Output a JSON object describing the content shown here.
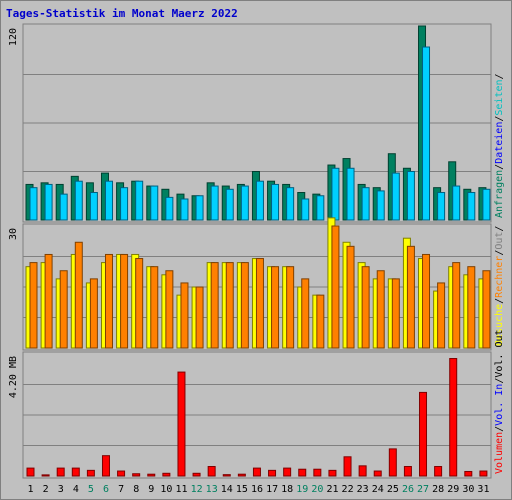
{
  "title": "Tages-Statistik im Monat Maerz 2022",
  "colors": {
    "background": "#c0c0c0",
    "grid": "#808080",
    "title": "#0000cc",
    "anfragen": "#008060",
    "dateien": "#00d0ff",
    "seiten": "#00c0c0",
    "besuche": "#ffff00",
    "rechner": "#ff8000",
    "volumen": "#ff0000",
    "weekend": "#008060",
    "weekday": "#000000"
  },
  "chart_data": {
    "type": "bar",
    "categories": [
      "1",
      "2",
      "3",
      "4",
      "5",
      "6",
      "7",
      "8",
      "9",
      "10",
      "11",
      "12",
      "13",
      "14",
      "15",
      "16",
      "17",
      "18",
      "19",
      "20",
      "21",
      "22",
      "23",
      "24",
      "25",
      "26",
      "27",
      "28",
      "29",
      "30",
      "31"
    ],
    "weekend_days": [
      "5",
      "6",
      "12",
      "13",
      "19",
      "20",
      "26",
      "27"
    ],
    "panels": [
      {
        "id": "top",
        "scale_label": "120",
        "ymax": 120,
        "right_labels": [
          {
            "text": "Anfragen",
            "color": "#008060"
          },
          {
            "text": "/",
            "color": "#000000"
          },
          {
            "text": "Dateien",
            "color": "#0000ff"
          },
          {
            "text": "/",
            "color": "#000000"
          },
          {
            "text": "Seiten",
            "color": "#00c0c0"
          },
          {
            "text": "/",
            "color": "#000000"
          }
        ],
        "series": [
          {
            "name": "Anfragen",
            "color": "#008060",
            "values": [
              22,
              23,
              22,
              27,
              23,
              29,
              23,
              24,
              21,
              19,
              16,
              15,
              23,
              21,
              22,
              30,
              24,
              22,
              17,
              16,
              34,
              38,
              22,
              20,
              41,
              32,
              120,
              20,
              36,
              19,
              20
            ]
          },
          {
            "name": "Dateien",
            "color": "#00d0ff",
            "values": [
              20,
              22,
              16,
              24,
              17,
              24,
              20,
              24,
              21,
              14,
              13,
              15,
              21,
              19,
              21,
              24,
              22,
              20,
              13,
              15,
              32,
              32,
              20,
              18,
              29,
              30,
              107,
              17,
              21,
              17,
              19
            ]
          },
          {
            "name": "Seiten",
            "color": "#00c0c0",
            "values": [
              0,
              0,
              0,
              0,
              0,
              0,
              0,
              0,
              0,
              0,
              0,
              0,
              0,
              0,
              0,
              0,
              0,
              0,
              0,
              0,
              0,
              0,
              0,
              0,
              0,
              0,
              0,
              0,
              0,
              0,
              0
            ]
          }
        ]
      },
      {
        "id": "middle",
        "scale_label": "30",
        "ymax": 30,
        "right_labels": [
          {
            "text": "Besuche",
            "color": "#ffff00"
          },
          {
            "text": "/",
            "color": "#000000"
          },
          {
            "text": "Rechner",
            "color": "#ff8000"
          },
          {
            "text": "/",
            "color": "#000000"
          },
          {
            "text": "Out",
            "color": "#808080"
          },
          {
            "text": "/",
            "color": "#000000"
          }
        ],
        "series": [
          {
            "name": "Besuche",
            "color": "#ffff00",
            "values": [
              20,
              21,
              17,
              23,
              16,
              21,
              23,
              23,
              20,
              18,
              13,
              15,
              21,
              21,
              21,
              22,
              20,
              20,
              15,
              13,
              32,
              26,
              21,
              17,
              17,
              27,
              22,
              14,
              20,
              18,
              17
            ]
          },
          {
            "name": "Rechner",
            "color": "#ff8000",
            "values": [
              21,
              23,
              19,
              26,
              17,
              23,
              23,
              22,
              20,
              19,
              16,
              15,
              21,
              21,
              21,
              22,
              20,
              20,
              17,
              13,
              30,
              25,
              20,
              19,
              17,
              25,
              23,
              16,
              21,
              20,
              19
            ]
          }
        ]
      },
      {
        "id": "bottom",
        "scale_label": "4.20 MB",
        "ymax": 5.4,
        "right_labels": [
          {
            "text": "Volumen",
            "color": "#ff0000"
          },
          {
            "text": "/",
            "color": "#000000"
          },
          {
            "text": "Vol. In",
            "color": "#0000ff"
          },
          {
            "text": "/",
            "color": "#000000"
          },
          {
            "text": "Vol. Out",
            "color": "#000000"
          }
        ],
        "series": [
          {
            "name": "Volumen",
            "color": "#ff0000",
            "values": [
              0.35,
              0.05,
              0.35,
              0.35,
              0.25,
              0.9,
              0.22,
              0.1,
              0.08,
              0.12,
              4.6,
              0.12,
              0.42,
              0.06,
              0.08,
              0.35,
              0.25,
              0.35,
              0.3,
              0.3,
              0.25,
              0.85,
              0.45,
              0.22,
              1.2,
              0.42,
              3.7,
              0.42,
              5.2,
              0.2,
              0.22
            ]
          }
        ]
      }
    ]
  }
}
